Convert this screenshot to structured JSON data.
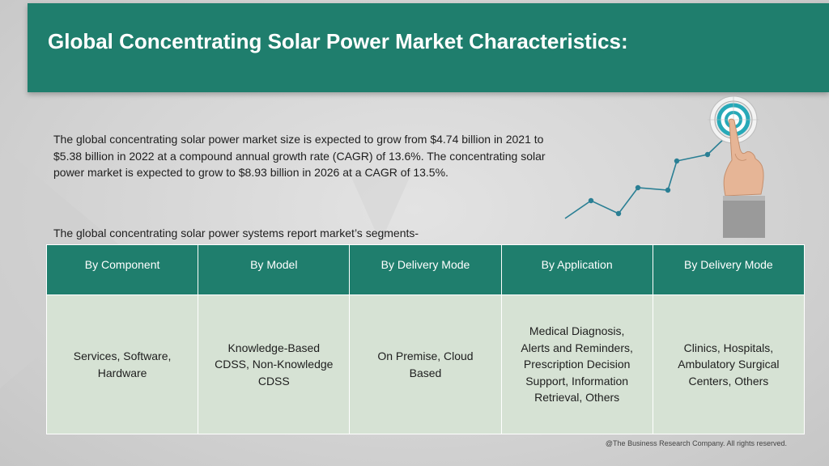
{
  "title": "Global Concentrating Solar Power Market Characteristics:",
  "intro_text": "The global concentrating solar power market size is expected to grow from $4.74 billion in 2021 to $5.38 billion in 2022 at a compound annual growth rate (CAGR) of 13.6%. The concentrating solar power market is expected to grow to $8.93 billion in 2026 at a CAGR of 13.5%.",
  "segments_caption": "The global concentrating solar power systems report market’s segments-",
  "table": {
    "headers": [
      "By Component",
      "By Model",
      "By Delivery Mode",
      "By Application",
      "By Delivery Mode"
    ],
    "cells": [
      "Services, Software, Hardware",
      "Knowledge-Based CDSS, Non-Knowledge CDSS",
      "On Premise, Cloud Based",
      "Medical Diagnosis, Alerts and Reminders, Prescription Decision Support, Information Retrieval, Others",
      "Clinics, Hospitals, Ambulatory Surgical Centers, Others"
    ]
  },
  "footer": "@The Business Research Company. All rights reserved.",
  "colors": {
    "header_bg": "#1f7e6d",
    "cell_bg": "#d6e2d4",
    "text": "#1e1e1e",
    "target_ring": "#27a9b8",
    "line": "#2a7f94"
  },
  "icons": [
    "growth-line-icon",
    "target-icon",
    "pointing-hand-icon"
  ]
}
